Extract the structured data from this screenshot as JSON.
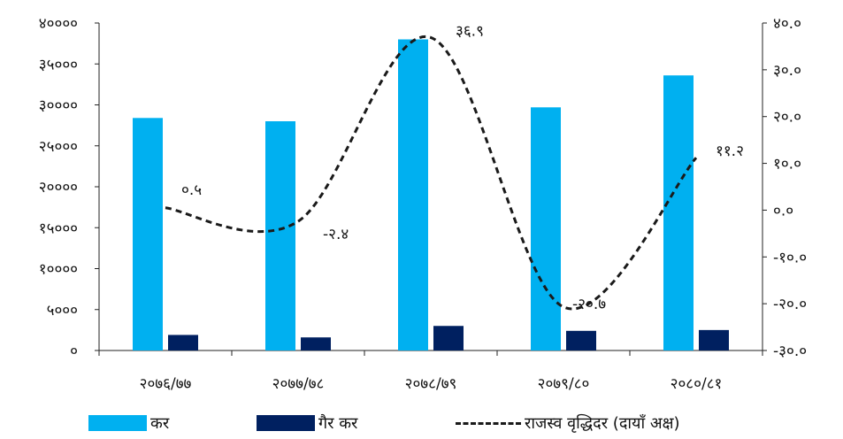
{
  "chart_data": {
    "type": "bar",
    "categories": [
      "२०७६/७७",
      "२०७७/७८",
      "२०७८/७९",
      "२०७९/८०",
      "२०८०/८१"
    ],
    "series": [
      {
        "name": "कर",
        "type": "bar",
        "axis": "left",
        "color": "#00b0f0",
        "values": [
          28400,
          28000,
          38000,
          29700,
          33600
        ]
      },
      {
        "name": "गैर कर",
        "type": "bar",
        "axis": "left",
        "color": "#002060",
        "values": [
          1900,
          1600,
          3000,
          2400,
          2500
        ]
      },
      {
        "name": "राजस्व वृद्धिदर (दायाँ अक्ष)",
        "type": "line",
        "axis": "right",
        "color": "#1a1a1a",
        "values": [
          0.5,
          -2.4,
          36.9,
          -20.7,
          11.2
        ],
        "labels": [
          "०.५",
          "-२.४",
          "३६.९",
          "-२०.७",
          "११.२"
        ]
      }
    ],
    "ylim_left": [
      0,
      40000
    ],
    "ylim_right": [
      -30,
      40
    ],
    "left_ticks": [
      "०",
      "५०००",
      "१००००",
      "१५०००",
      "२००००",
      "२५०००",
      "३००००",
      "३५०००",
      "४००००"
    ],
    "right_ticks": [
      "-३०.०",
      "-२०.०",
      "-१०.०",
      "०.०",
      "१०.०",
      "२०.०",
      "३०.०",
      "४०.०"
    ],
    "grid": false,
    "legend_position": "bottom"
  }
}
